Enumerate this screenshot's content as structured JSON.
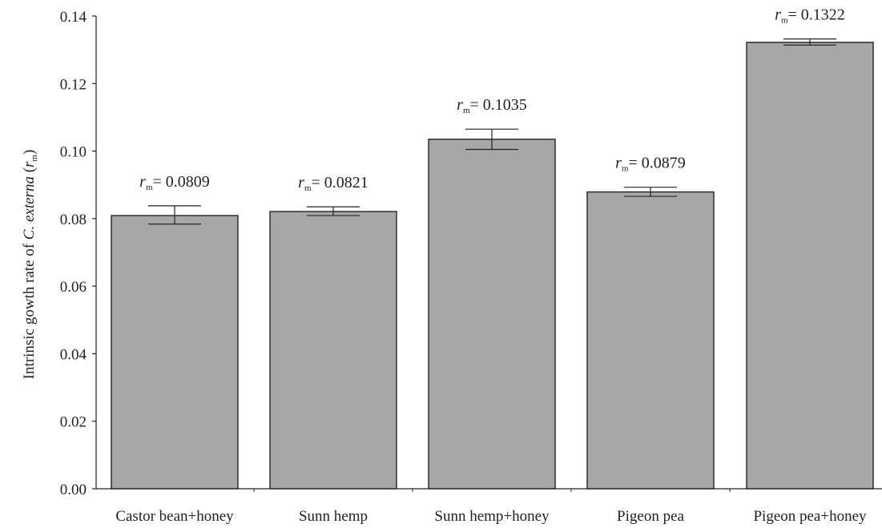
{
  "chart_data": {
    "type": "bar",
    "title": "",
    "xlabel": "",
    "ylabel": {
      "prefix": "Intrinsic gowth rate of ",
      "species": "C. externa",
      "open": " (",
      "symbol": "r",
      "subscript": "m",
      "close": ")"
    },
    "ylim": [
      0,
      0.14
    ],
    "yticks": [
      "0.00",
      "0.02",
      "0.04",
      "0.06",
      "0.08",
      "0.10",
      "0.12",
      "0.14"
    ],
    "categories": [
      "Castor bean+honey",
      "Sunn hemp",
      "Sunn hemp+honey",
      "Pigeon pea",
      "Pigeon pea+honey"
    ],
    "values": [
      0.0809,
      0.0821,
      0.1035,
      0.0879,
      0.1322
    ],
    "error_low": [
      0.0784,
      0.0809,
      0.1005,
      0.0866,
      0.1314
    ],
    "error_high": [
      0.0838,
      0.0835,
      0.1065,
      0.0893,
      0.1332
    ],
    "annotations": [
      {
        "symbol": "r",
        "subscript": "m",
        "text": "= 0.0809"
      },
      {
        "symbol": "r",
        "subscript": "m",
        "text": "= 0.0821"
      },
      {
        "symbol": "r",
        "subscript": "m",
        "text": "= 0.1035"
      },
      {
        "symbol": "r",
        "subscript": "m",
        "text": "= 0.0879"
      },
      {
        "symbol": "r",
        "subscript": "m",
        "text": "= 0.1322"
      }
    ],
    "bar_color": "#a6a7a6",
    "bar_edge_color": "#222222",
    "grid": false,
    "legend": "none"
  }
}
